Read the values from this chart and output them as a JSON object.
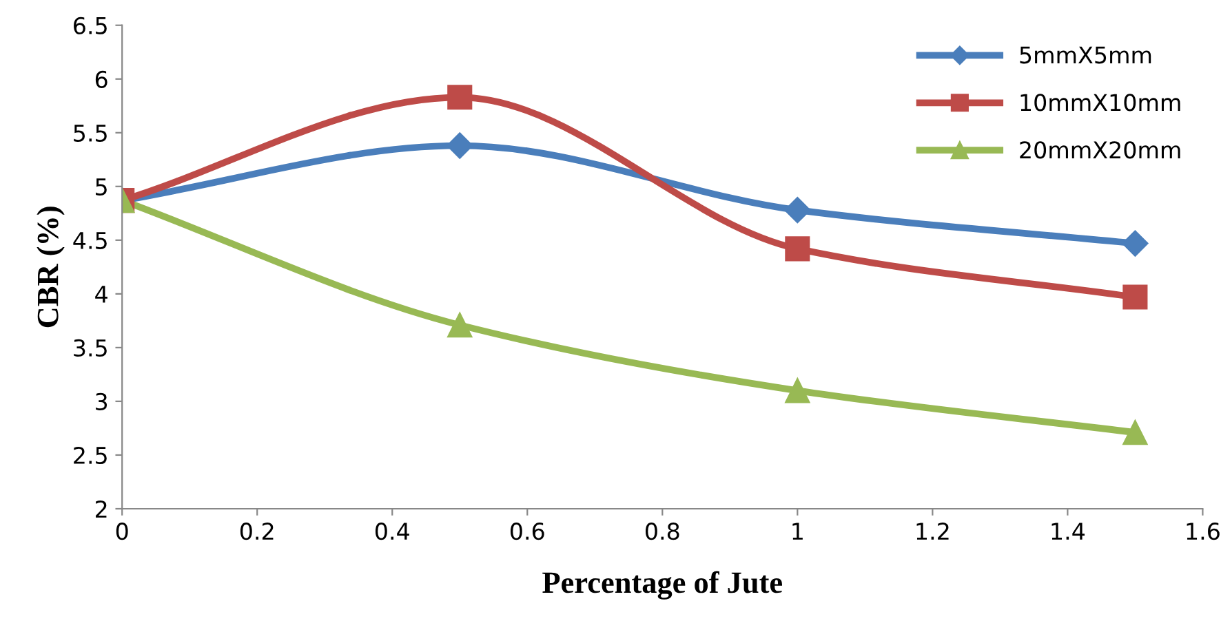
{
  "chart_data": {
    "type": "line",
    "xlabel": "Percentage of Jute",
    "ylabel": "CBR (%)",
    "x": [
      0,
      0.5,
      1,
      1.5
    ],
    "series": [
      {
        "name": "5mmX5mm",
        "color": "#4a7ebb",
        "marker": "diamond",
        "values": [
          4.87,
          5.38,
          4.78,
          4.47
        ]
      },
      {
        "name": "10mmX10mm",
        "color": "#be4b48",
        "marker": "square",
        "values": [
          4.87,
          5.83,
          4.42,
          3.97
        ]
      },
      {
        "name": "20mmX20mm",
        "color": "#98b954",
        "marker": "triangle",
        "values": [
          4.87,
          3.71,
          3.1,
          2.71
        ]
      }
    ],
    "xlim": [
      0,
      1.6
    ],
    "xticks": [
      0,
      0.2,
      0.4,
      0.6,
      0.8,
      1,
      1.2,
      1.4,
      1.6
    ],
    "ylim": [
      2,
      6.5
    ],
    "yticks": [
      2,
      2.5,
      3,
      3.5,
      4,
      4.5,
      5,
      5.5,
      6,
      6.5
    ],
    "grid": false,
    "legend": "top right",
    "line_style": "solid"
  }
}
